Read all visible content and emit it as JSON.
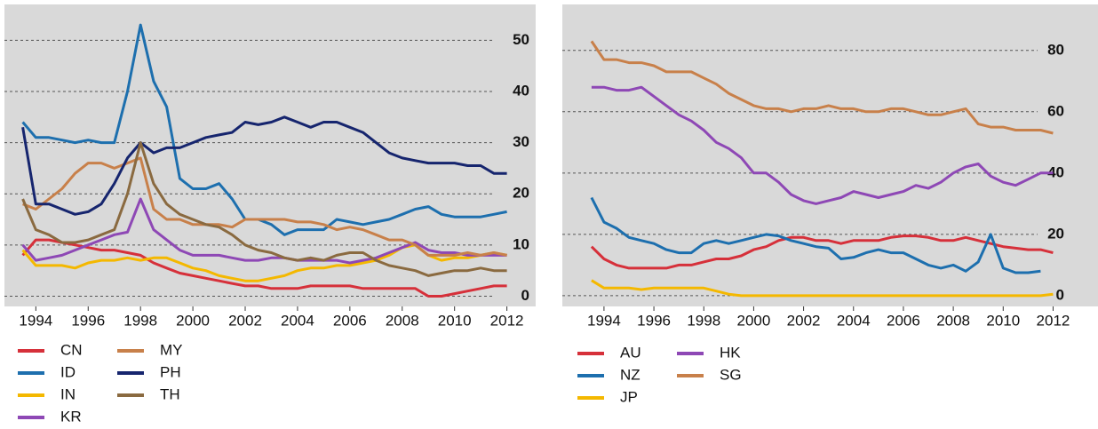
{
  "chart_data": [
    {
      "type": "line",
      "legend": "bottom",
      "grid": true,
      "background": "#d9d9d9",
      "xlim": [
        1992.8,
        2013.1
      ],
      "ylim": [
        -2,
        57
      ],
      "xticks": [
        1994,
        1996,
        1998,
        2000,
        2002,
        2004,
        2006,
        2008,
        2010,
        2012
      ],
      "yticks": [
        0,
        10,
        20,
        30,
        40,
        50
      ],
      "x": [
        1993.5,
        1994,
        1994.5,
        1995,
        1995.5,
        1996,
        1996.5,
        1997,
        1997.5,
        1998,
        1998.5,
        1999,
        1999.5,
        2000,
        2000.5,
        2001,
        2001.5,
        2002,
        2002.5,
        2003,
        2003.5,
        2004,
        2004.5,
        2005,
        2005.5,
        2006,
        2006.5,
        2007,
        2007.5,
        2008,
        2008.5,
        2009,
        2009.5,
        2010,
        2010.5,
        2011,
        2011.5,
        2012
      ],
      "series": [
        {
          "name": "CN",
          "color": "#d6303a",
          "values": [
            8,
            11,
            11,
            10.5,
            10,
            9.5,
            9,
            9,
            8.5,
            8,
            6.5,
            5.5,
            4.5,
            4,
            3.5,
            3,
            2.5,
            2,
            2,
            1.5,
            1.5,
            1.5,
            2,
            2,
            2,
            2,
            1.5,
            1.5,
            1.5,
            1.5,
            1.5,
            0,
            0,
            0.5,
            1,
            1.5,
            2,
            2
          ]
        },
        {
          "name": "ID",
          "color": "#1d6fae",
          "values": [
            34,
            31,
            31,
            30.5,
            30,
            30.5,
            30,
            30,
            40,
            53,
            42,
            37,
            23,
            21,
            21,
            22,
            19,
            15,
            15,
            14,
            12,
            13,
            13,
            13,
            15,
            14.5,
            14,
            14.5,
            15,
            16,
            17,
            17.5,
            16,
            15.5,
            15.5,
            15.5,
            16,
            16.5
          ]
        },
        {
          "name": "IN",
          "color": "#f4b800",
          "values": [
            9,
            6,
            6,
            6,
            5.5,
            6.5,
            7,
            7,
            7.5,
            7,
            7.5,
            7.5,
            6.5,
            5.5,
            5,
            4,
            3.5,
            3,
            3,
            3.5,
            4,
            5,
            5.5,
            5.5,
            6,
            6,
            6.5,
            7,
            8,
            9.5,
            10,
            8,
            7,
            7.5,
            7.5,
            8,
            8.5,
            8
          ]
        },
        {
          "name": "KR",
          "color": "#8e48b5",
          "values": [
            10,
            7,
            7.5,
            8,
            9,
            10,
            11,
            12,
            12.5,
            19,
            13,
            11,
            9,
            8,
            8,
            8,
            7.5,
            7,
            7,
            7.5,
            7.5,
            7,
            7,
            7,
            7,
            6.5,
            7,
            7.5,
            8.5,
            9.5,
            10.5,
            9,
            8.5,
            8.5,
            8,
            8,
            8,
            8
          ]
        },
        {
          "name": "MY",
          "color": "#c8804a",
          "values": [
            18,
            17,
            19,
            21,
            24,
            26,
            26,
            25,
            26,
            27,
            17,
            15,
            15,
            14,
            14,
            14,
            13.5,
            15,
            15,
            15,
            15,
            14.5,
            14.5,
            14,
            13,
            13.5,
            13,
            12,
            11,
            11,
            10,
            8,
            8,
            8,
            8.5,
            8,
            8.5,
            8
          ]
        },
        {
          "name": "PH",
          "color": "#16256e",
          "values": [
            33,
            18,
            18,
            17,
            16,
            16.5,
            18,
            22,
            27,
            30,
            28,
            29,
            29,
            30,
            31,
            31.5,
            32,
            34,
            33.5,
            34,
            35,
            34,
            33,
            34,
            34,
            33,
            32,
            30,
            28,
            27,
            26.5,
            26,
            26,
            26,
            25.5,
            25.5,
            24,
            24
          ]
        },
        {
          "name": "TH",
          "color": "#8a6a40",
          "values": [
            19,
            13,
            12,
            10.5,
            10.5,
            11,
            12,
            13,
            20,
            30,
            22,
            18,
            16,
            15,
            14,
            13.5,
            12,
            10,
            9,
            8.5,
            7.5,
            7,
            7.5,
            7,
            8,
            8.5,
            8.5,
            7,
            6,
            5.5,
            5,
            4,
            4.5,
            5,
            5,
            5.5,
            5,
            5
          ]
        }
      ]
    },
    {
      "type": "line",
      "legend": "bottom",
      "grid": true,
      "background": "#d9d9d9",
      "xlim": [
        1992.33,
        2013.8
      ],
      "ylim": [
        -3.5,
        95
      ],
      "xticks": [
        1994,
        1996,
        1998,
        2000,
        2002,
        2004,
        2006,
        2008,
        2010,
        2012
      ],
      "yticks": [
        0,
        20,
        40,
        60,
        80
      ],
      "x": [
        1993.5,
        1994,
        1994.5,
        1995,
        1995.5,
        1996,
        1996.5,
        1997,
        1997.5,
        1998,
        1998.5,
        1999,
        1999.5,
        2000,
        2000.5,
        2001,
        2001.5,
        2002,
        2002.5,
        2003,
        2003.5,
        2004,
        2004.5,
        2005,
        2005.5,
        2006,
        2006.5,
        2007,
        2007.5,
        2008,
        2008.5,
        2009,
        2009.5,
        2010,
        2010.5,
        2011,
        2011.5,
        2012
      ],
      "series": [
        {
          "name": "AU",
          "color": "#d6303a",
          "values": [
            16,
            12,
            10,
            9,
            9,
            9,
            9,
            10,
            10,
            11,
            12,
            12,
            13,
            15,
            16,
            18,
            19,
            19,
            18,
            18,
            17,
            18,
            18,
            18,
            19,
            19.5,
            19.5,
            19,
            18,
            18,
            19,
            18,
            17,
            16,
            15.5,
            15,
            15,
            14
          ]
        },
        {
          "name": "NZ",
          "color": "#1d6fae",
          "values": [
            32,
            24,
            22,
            19,
            18,
            17,
            15,
            14,
            14,
            17,
            18,
            17,
            18,
            19,
            20,
            19.5,
            18,
            17,
            16,
            15.5,
            12,
            12.5,
            14,
            15,
            14,
            14,
            12,
            10,
            9,
            10,
            8,
            11,
            20,
            9,
            7.5,
            7.5,
            8,
            null
          ]
        },
        {
          "name": "JP",
          "color": "#f4b800",
          "values": [
            5,
            2.5,
            2.5,
            2.5,
            2,
            2.5,
            2.5,
            2.5,
            2.5,
            2.5,
            1.5,
            0.5,
            0,
            0,
            0,
            0,
            0,
            0,
            0,
            0,
            0,
            0,
            0,
            0,
            0,
            0,
            0,
            0,
            0,
            0,
            0,
            0,
            0,
            0,
            0,
            0,
            0,
            0.5
          ]
        },
        {
          "name": "HK",
          "color": "#8e48b5",
          "values": [
            68,
            68,
            67,
            67,
            68,
            65,
            62,
            59,
            57,
            54,
            50,
            48,
            45,
            40,
            40,
            37,
            33,
            31,
            30,
            31,
            32,
            34,
            33,
            32,
            33,
            34,
            36,
            35,
            37,
            40,
            42,
            43,
            39,
            37,
            36,
            38,
            40,
            40
          ]
        },
        {
          "name": "SG",
          "color": "#c8804a",
          "values": [
            83,
            77,
            77,
            76,
            76,
            75,
            73,
            73,
            73,
            71,
            69,
            66,
            64,
            62,
            61,
            61,
            60,
            61,
            61,
            62,
            61,
            61,
            60,
            60,
            61,
            61,
            60,
            59,
            59,
            60,
            61,
            56,
            55,
            55,
            54,
            54,
            54,
            53
          ]
        }
      ]
    }
  ]
}
